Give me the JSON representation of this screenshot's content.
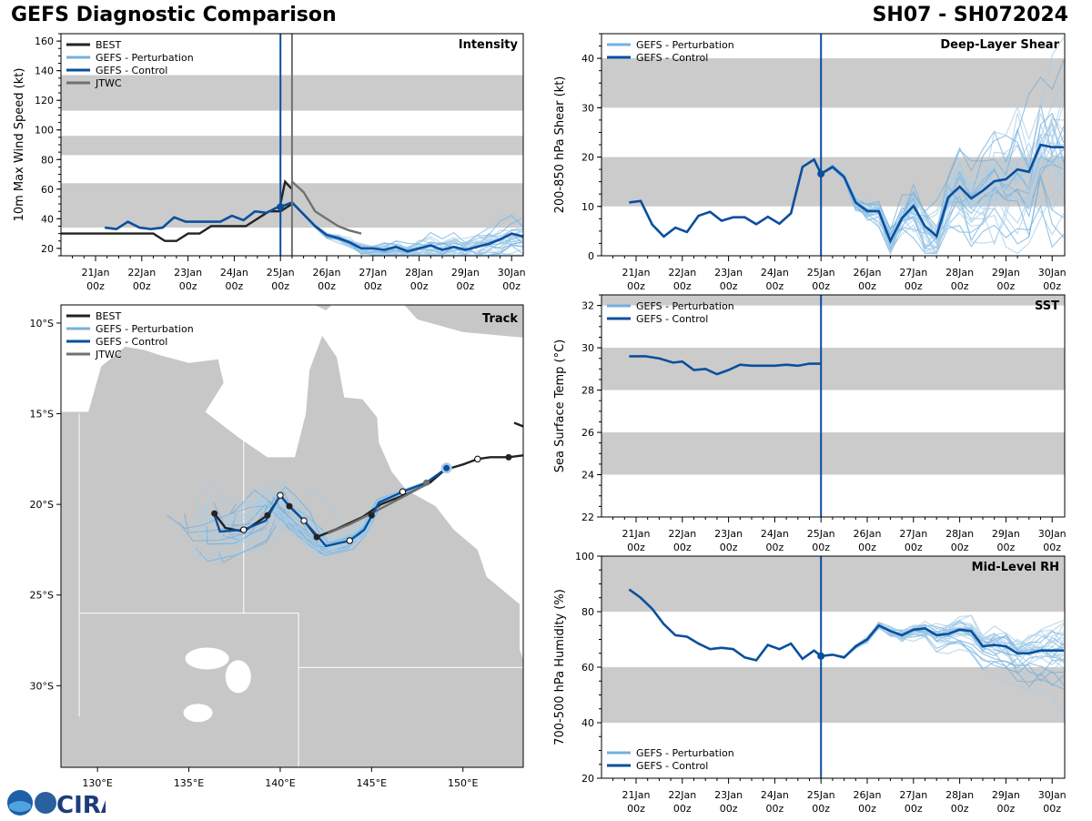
{
  "header": {
    "title_left": "GEFS Diagnostic Comparison",
    "title_right": "SH07 - SH072024"
  },
  "time_axis": {
    "labels": [
      "21Jan",
      "22Jan",
      "23Jan",
      "24Jan",
      "25Jan",
      "26Jan",
      "27Jan",
      "28Jan",
      "29Jan",
      "30Jan"
    ],
    "sublabel": "00z",
    "init_day": 4
  },
  "legend": {
    "best": "BEST",
    "pert": "GEFS - Perturbation",
    "control": "GEFS - Control",
    "jtwc": "JTWC"
  },
  "colors": {
    "best": "#222222",
    "pert": "#74b0de",
    "pert_light": "#a8cde8",
    "control": "#0a4f9e",
    "jtwc": "#707070",
    "band": "#cbcbcb",
    "land": "#c7c7c7"
  },
  "logo": {
    "text": "CIRA"
  },
  "chart_data": [
    {
      "id": "intensity",
      "type": "line",
      "title": "Intensity",
      "ylabel": "10m Max Wind Speed (kt)",
      "ylim": [
        15,
        165
      ],
      "yticks": [
        20,
        40,
        60,
        80,
        100,
        120,
        140,
        160
      ],
      "bands": [
        [
          34,
          64
        ],
        [
          83,
          96
        ],
        [
          113,
          137
        ]
      ],
      "series": [
        {
          "name": "BEST",
          "x": [
            -0.75,
            -0.5,
            -0.25,
            0,
            0.25,
            0.5,
            0.75,
            1,
            1.25,
            1.5,
            1.75,
            2,
            2.25,
            2.5,
            2.75,
            3,
            3.25,
            3.5,
            3.75,
            4,
            4.25
          ],
          "y": [
            30,
            30,
            30,
            30,
            30,
            30,
            30,
            30,
            30,
            25,
            25,
            30,
            30,
            35,
            35,
            35,
            35,
            40,
            45,
            45,
            50
          ]
        },
        {
          "name": "BEST (post-init)",
          "x": [
            4,
            4.1,
            4.25
          ],
          "y": [
            50,
            65,
            60
          ]
        },
        {
          "name": "JTWC",
          "x": [
            4.25,
            4.5,
            4.75,
            5,
            5.25,
            5.5,
            5.75
          ],
          "y": [
            65,
            58,
            45,
            40,
            35,
            32,
            30
          ]
        },
        {
          "name": "GEFS - Control",
          "x": [
            0.2,
            0.45,
            0.7,
            0.95,
            1.2,
            1.45,
            1.7,
            1.95,
            2.2,
            2.45,
            2.7,
            2.95,
            3.2,
            3.45,
            3.7,
            3.95,
            4.0,
            4.25,
            4.5,
            4.75,
            5,
            5.25,
            5.5,
            5.75,
            6,
            6.25,
            6.5,
            6.75,
            7,
            7.25,
            7.5,
            7.75,
            8,
            8.25,
            8.5,
            8.75,
            9,
            9.25
          ],
          "y": [
            34,
            33,
            38,
            34,
            33,
            34,
            41,
            38,
            38,
            38,
            38,
            42,
            39,
            45,
            44,
            48,
            48,
            51,
            43,
            35,
            29,
            27,
            24,
            20,
            20,
            19,
            21,
            18,
            20,
            22,
            19,
            21,
            19,
            21,
            23,
            26,
            30,
            28
          ]
        }
      ]
    },
    {
      "id": "shear",
      "type": "line",
      "title": "Deep-Layer Shear",
      "ylabel": "200-850 hPa Shear (kt)",
      "ylim": [
        0,
        45
      ],
      "yticks": [
        0,
        10,
        20,
        30,
        40
      ],
      "bands": [
        [
          10,
          20
        ],
        [
          30,
          40
        ]
      ],
      "series": [
        {
          "name": "GEFS - Control",
          "x": [
            -0.15,
            0.1,
            0.35,
            0.6,
            0.85,
            1.1,
            1.35,
            1.6,
            1.85,
            2.1,
            2.35,
            2.6,
            2.85,
            3.1,
            3.35,
            3.6,
            3.85,
            4,
            4.25,
            4.5,
            4.75,
            5,
            5.25,
            5.5,
            5.75,
            6,
            6.25,
            6.5,
            6.75,
            7,
            7.25,
            7.5,
            7.75,
            8,
            8.25,
            8.5,
            8.75,
            9,
            9.25
          ],
          "y": [
            10.8,
            11.1,
            6.3,
            3.9,
            5.7,
            4.8,
            8.1,
            8.9,
            7.1,
            7.8,
            7.8,
            6.4,
            7.9,
            6.5,
            8.6,
            18.0,
            19.5,
            16.6,
            18.0,
            16.0,
            10.8,
            9.1,
            9.0,
            3.0,
            7.6,
            10.1,
            6.0,
            4.0,
            11.8,
            14.0,
            11.6,
            13.2,
            15.1,
            15.5,
            17.5,
            17.0,
            22.5,
            22,
            22
          ]
        }
      ]
    },
    {
      "id": "sst",
      "type": "line",
      "title": "SST",
      "ylabel": "Sea Surface Temp (°C)",
      "ylim": [
        22,
        32.5
      ],
      "yticks": [
        22,
        24,
        26,
        28,
        30,
        32
      ],
      "bands": [
        [
          24,
          26
        ],
        [
          28,
          30
        ],
        [
          32,
          32.5
        ]
      ],
      "series": [
        {
          "name": "GEFS - Control",
          "x": [
            -0.15,
            0.2,
            0.5,
            0.8,
            1.0,
            1.25,
            1.5,
            1.75,
            2.0,
            2.25,
            2.5,
            2.75,
            3.0,
            3.25,
            3.5,
            3.75,
            4.0
          ],
          "y": [
            29.6,
            29.6,
            29.5,
            29.3,
            29.35,
            28.95,
            29.0,
            28.75,
            28.95,
            29.2,
            29.15,
            29.15,
            29.15,
            29.2,
            29.15,
            29.25,
            29.25
          ]
        }
      ]
    },
    {
      "id": "rh",
      "type": "line",
      "title": "Mid-Level RH",
      "ylabel": "700-500 hPa Humidity (%)",
      "ylim": [
        20,
        100
      ],
      "yticks": [
        20,
        40,
        60,
        80,
        100
      ],
      "bands": [
        [
          40,
          60
        ],
        [
          80,
          100
        ]
      ],
      "series": [
        {
          "name": "GEFS - Control",
          "x": [
            -0.15,
            0.1,
            0.35,
            0.6,
            0.85,
            1.1,
            1.35,
            1.6,
            1.85,
            2.1,
            2.35,
            2.6,
            2.85,
            3.1,
            3.35,
            3.6,
            3.85,
            4,
            4.25,
            4.5,
            4.75,
            5,
            5.25,
            5.5,
            5.75,
            6,
            6.25,
            6.5,
            6.75,
            7,
            7.25,
            7.5,
            7.75,
            8,
            8.25,
            8.5,
            8.75,
            9,
            9.25
          ],
          "y": [
            88,
            85,
            81,
            75.5,
            71.5,
            71,
            68.5,
            66.5,
            67,
            66.5,
            63.5,
            62.5,
            68,
            66.5,
            68.5,
            63,
            66,
            64,
            64.5,
            63.5,
            67.5,
            70,
            75,
            73,
            71.5,
            73.5,
            74,
            71.5,
            72,
            73.5,
            73,
            67.5,
            68,
            67.5,
            65,
            65,
            66,
            66,
            66
          ]
        }
      ]
    },
    {
      "id": "track",
      "type": "line",
      "title": "Track",
      "xlim": [
        128,
        153.3
      ],
      "ylim": [
        -34.5,
        -9
      ],
      "xticks": [
        130,
        135,
        140,
        145,
        150
      ],
      "xtick_labels": [
        "130°E",
        "135°E",
        "140°E",
        "145°E",
        "150°E"
      ],
      "yticks": [
        -10,
        -15,
        -20,
        -25,
        -30
      ],
      "ytick_labels": [
        "10°S",
        "15°S",
        "20°S",
        "25°S",
        "30°S"
      ],
      "series": [
        {
          "name": "BEST",
          "lon": [
            136.4,
            137,
            138,
            139.3,
            139.7,
            140,
            140.5,
            141.3,
            142,
            143,
            144.5,
            145.5,
            147,
            148.2,
            149,
            150,
            150.8,
            151.5,
            152.5,
            153.3
          ],
          "lat": [
            -20.5,
            -21.3,
            -21.5,
            -20.6,
            -20,
            -19.5,
            -20.1,
            -20.9,
            -21.8,
            -21.4,
            -20.7,
            -20,
            -19.4,
            -18.8,
            -18.1,
            -17.8,
            -17.5,
            -17.4,
            -17.4,
            -17.3
          ]
        },
        {
          "name": "BEST (east)",
          "lon": [
            152.8,
            153.3
          ],
          "lat": [
            -15.5,
            -15.7
          ]
        },
        {
          "name": "JTWC",
          "lon": [
            142.6,
            143.8,
            145,
            146.5,
            148
          ],
          "lat": [
            -21.6,
            -21.1,
            -20.5,
            -19.7,
            -18.9
          ]
        },
        {
          "name": "GEFS - Control",
          "lon": [
            136.4,
            136.7,
            138,
            139.2,
            140,
            140.5,
            141.2,
            142,
            142.5,
            143.8,
            144.6,
            145.4,
            146.7,
            148,
            149.1
          ],
          "lat": [
            -20.6,
            -21.5,
            -21.4,
            -20.9,
            -19.5,
            -20.1,
            -20.8,
            -21.7,
            -22.3,
            -22.0,
            -21.4,
            -19.9,
            -19.3,
            -18.8,
            -18
          ]
        }
      ]
    }
  ]
}
